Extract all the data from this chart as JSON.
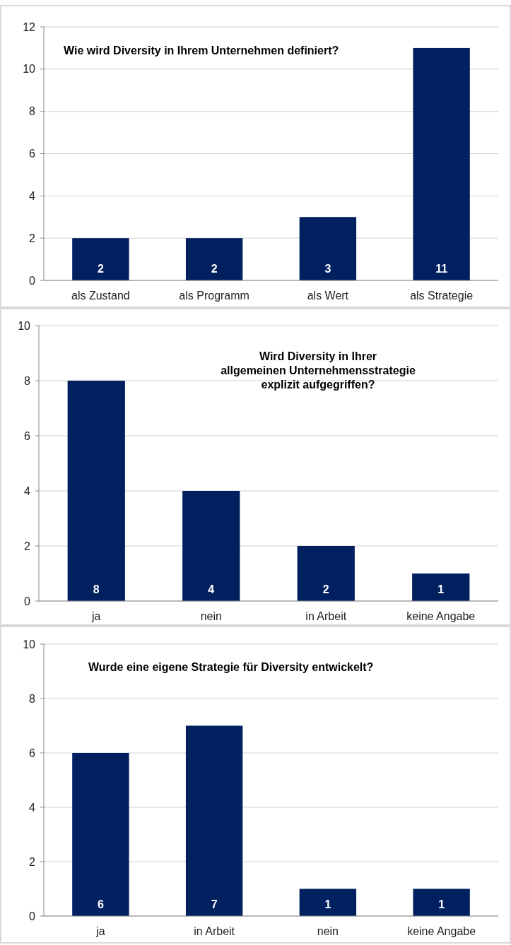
{
  "chart_data": [
    {
      "type": "bar",
      "title": "Wie wird Diversity in Ihrem Unternehmen definiert?",
      "categories": [
        "als Zustand",
        "als Programm",
        "als Wert",
        "als Strategie"
      ],
      "values": [
        2,
        2,
        3,
        11
      ],
      "color": "#002060",
      "ylim": [
        0,
        12
      ],
      "yticks": [
        0,
        2,
        4,
        6,
        8,
        10,
        12
      ],
      "grid": "y",
      "data_labels": true
    },
    {
      "type": "bar",
      "title": "Wird Diversity in Ihrer\nallgemeinen Unternehmensstrategie\nexplizit aufgegriffen?",
      "categories": [
        "ja",
        "nein",
        "in Arbeit",
        "keine Angabe"
      ],
      "values": [
        8,
        4,
        2,
        1
      ],
      "color": "#002060",
      "ylim": [
        0,
        10
      ],
      "yticks": [
        0,
        2,
        4,
        6,
        8,
        10
      ],
      "grid": "y",
      "data_labels": true
    },
    {
      "type": "bar",
      "title": "Wurde eine eigene Strategie für Diversity entwickelt?",
      "categories": [
        "ja",
        "in Arbeit",
        "nein",
        "keine Angabe"
      ],
      "values": [
        6,
        7,
        1,
        1
      ],
      "color": "#002060",
      "ylim": [
        0,
        10
      ],
      "yticks": [
        0,
        2,
        4,
        6,
        8,
        10
      ],
      "grid": "y",
      "data_labels": true
    }
  ]
}
